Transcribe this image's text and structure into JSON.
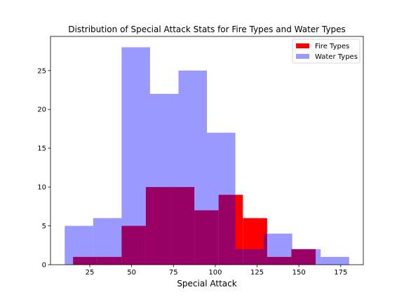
{
  "chart_data": {
    "type": "histogram",
    "title": "Distribution of Special Attack Stats for Fire Types and Water Types",
    "xlabel": "Special Attack",
    "ylabel": "",
    "xlim": [
      1.5,
      188.5
    ],
    "ylim": [
      0,
      29.4
    ],
    "xticks": [
      25,
      50,
      75,
      100,
      125,
      150,
      175
    ],
    "yticks": [
      0,
      5,
      10,
      15,
      20,
      25
    ],
    "grid": false,
    "legend_position": "top-right",
    "series": [
      {
        "name": "Fire Types",
        "color": "#ff0000",
        "alpha": 1.0,
        "bin_edges": [
          15,
          29.5,
          44,
          58.5,
          73,
          87.5,
          102,
          116.5,
          131,
          145.5,
          160
        ],
        "counts": [
          1,
          1,
          5,
          10,
          10,
          7,
          9,
          6,
          1,
          2
        ]
      },
      {
        "name": "Water Types",
        "color": "#0000ff",
        "alpha": 0.4,
        "bin_edges": [
          10,
          27,
          44,
          61,
          78,
          95,
          112,
          129,
          146,
          163,
          180
        ],
        "counts": [
          5,
          6,
          28,
          22,
          25,
          17,
          2,
          4,
          2,
          1
        ]
      }
    ]
  }
}
